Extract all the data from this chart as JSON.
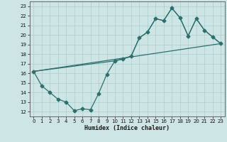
{
  "xlabel": "Humidex (Indice chaleur)",
  "ylabel": "",
  "xlim": [
    -0.5,
    23.5
  ],
  "ylim": [
    11.5,
    23.5
  ],
  "xticks": [
    0,
    1,
    2,
    3,
    4,
    5,
    6,
    7,
    8,
    9,
    10,
    11,
    12,
    13,
    14,
    15,
    16,
    17,
    18,
    19,
    20,
    21,
    22,
    23
  ],
  "yticks": [
    12,
    13,
    14,
    15,
    16,
    17,
    18,
    19,
    20,
    21,
    22,
    23
  ],
  "bg_color": "#cde5e5",
  "line_color": "#2d6e6e",
  "grid_color": "#aecece",
  "line1_x": [
    0,
    1,
    2,
    3,
    4,
    5,
    6,
    7,
    8,
    9,
    10,
    11,
    12,
    13,
    14,
    15,
    16,
    17,
    18,
    19,
    20,
    21,
    22,
    23
  ],
  "line1_y": [
    16.2,
    14.7,
    14.0,
    13.3,
    13.0,
    12.1,
    12.3,
    12.2,
    13.9,
    15.9,
    17.3,
    17.5,
    17.8,
    19.7,
    20.3,
    21.7,
    21.5,
    22.8,
    21.8,
    19.9,
    21.7,
    20.5,
    19.8,
    19.1
  ],
  "line2_x": [
    0,
    23
  ],
  "line2_y": [
    16.2,
    19.1
  ],
  "line3_x": [
    0,
    10,
    11,
    12,
    13,
    14,
    15,
    16,
    17,
    18,
    19,
    20,
    21,
    22,
    23
  ],
  "line3_y": [
    16.2,
    17.3,
    17.5,
    17.8,
    19.7,
    20.3,
    21.7,
    21.5,
    22.8,
    21.8,
    19.9,
    21.7,
    20.5,
    19.8,
    19.1
  ],
  "marker": "D",
  "markersize": 2.5,
  "linewidth": 0.9
}
